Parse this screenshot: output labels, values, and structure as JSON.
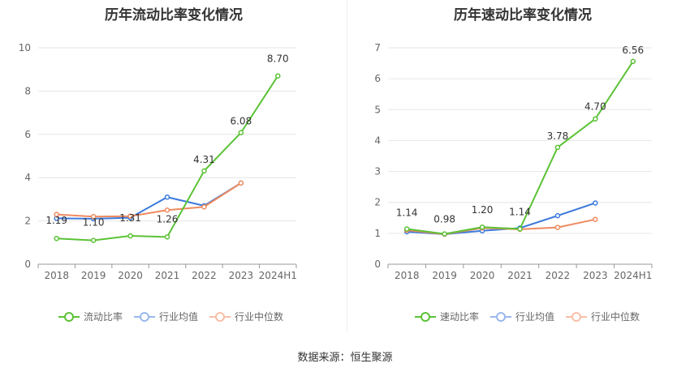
{
  "source_text": "数据来源：恒生聚源",
  "chart_data": [
    {
      "type": "line",
      "title": "历年流动比率变化情况",
      "categories": [
        "2018",
        "2019",
        "2020",
        "2021",
        "2022",
        "2023",
        "2024H1"
      ],
      "ylim": [
        0,
        10
      ],
      "yticks": [
        0,
        2,
        4,
        6,
        8,
        10
      ],
      "series": [
        {
          "name": "流动比率",
          "color": "#5bc236",
          "values": [
            1.19,
            1.1,
            1.31,
            1.26,
            4.31,
            6.08,
            8.7
          ],
          "labels": [
            "1.19",
            "1.10",
            "1.31",
            "1.26",
            "4.31",
            "6.08",
            "8.70"
          ]
        },
        {
          "name": "行业均值",
          "color": "#3d7bdc",
          "legend_color": "#9ab8ec",
          "values": [
            2.12,
            2.1,
            2.15,
            3.1,
            2.7,
            3.75,
            null
          ]
        },
        {
          "name": "行业中位数",
          "color": "#ef8a5f",
          "legend_color": "#f7bfa8",
          "values": [
            2.3,
            2.2,
            2.22,
            2.5,
            2.65,
            3.75,
            null
          ]
        }
      ]
    },
    {
      "type": "line",
      "title": "历年速动比率变化情况",
      "categories": [
        "2018",
        "2019",
        "2020",
        "2021",
        "2022",
        "2023",
        "2024H1"
      ],
      "ylim": [
        0,
        7
      ],
      "yticks": [
        0,
        1,
        2,
        3,
        4,
        5,
        6,
        7
      ],
      "series": [
        {
          "name": "速动比率",
          "color": "#5bc236",
          "values": [
            1.14,
            0.98,
            1.2,
            1.14,
            3.78,
            4.7,
            6.56
          ],
          "labels": [
            "1.14",
            "0.98",
            "1.20",
            "1.14",
            "3.78",
            "4.70",
            "6.56"
          ]
        },
        {
          "name": "行业均值",
          "color": "#3d7bdc",
          "legend_color": "#9ab8ec",
          "values": [
            1.05,
            0.97,
            1.08,
            1.17,
            1.57,
            1.98,
            null
          ]
        },
        {
          "name": "行业中位数",
          "color": "#ef8a5f",
          "legend_color": "#f7bfa8",
          "values": [
            1.1,
            0.97,
            1.17,
            1.13,
            1.19,
            1.45,
            null
          ]
        }
      ]
    }
  ]
}
